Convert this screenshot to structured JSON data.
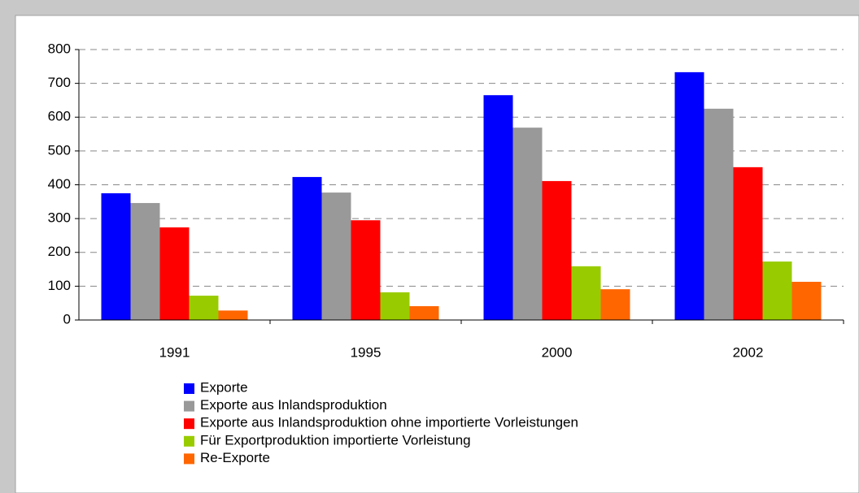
{
  "chart_data": {
    "type": "bar",
    "categories": [
      "1991",
      "1995",
      "2000",
      "2002"
    ],
    "series": [
      {
        "name": "Exporte",
        "color": "#0000ff",
        "values": [
          375,
          423,
          665,
          733
        ]
      },
      {
        "name": "Exporte aus Inlandsproduktion",
        "color": "#999999",
        "values": [
          346,
          377,
          569,
          625
        ]
      },
      {
        "name": "Exporte aus Inlandsproduktion ohne importierte Vorleistungen",
        "color": "#ff0000",
        "values": [
          274,
          295,
          411,
          452
        ]
      },
      {
        "name": "Für Exportproduktion importierte Vorleistung",
        "color": "#99cc00",
        "values": [
          72,
          82,
          159,
          173
        ]
      },
      {
        "name": "Re-Exporte",
        "color": "#ff6600",
        "values": [
          28,
          41,
          91,
          113
        ]
      }
    ],
    "ylim": [
      0,
      800
    ],
    "yticks": [
      0,
      100,
      200,
      300,
      400,
      500,
      600,
      700,
      800
    ],
    "grid": true,
    "legend": "bottom"
  }
}
